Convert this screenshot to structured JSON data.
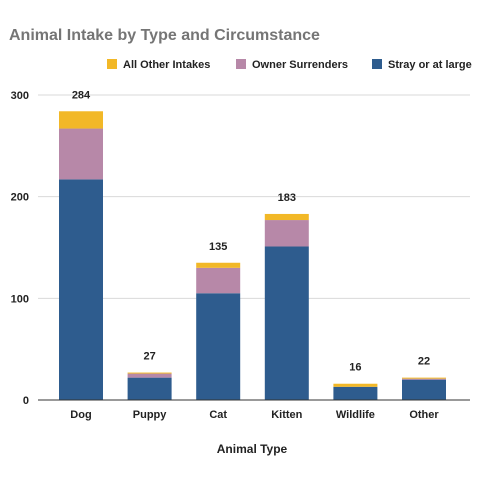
{
  "chart_data": {
    "type": "bar",
    "stacked": true,
    "title": "Animal Intake by Type and Circumstance",
    "xlabel": "Animal Type",
    "ylabel": "",
    "ylim": [
      0,
      300
    ],
    "yticks": [
      0,
      100,
      200,
      300
    ],
    "grid": true,
    "legend_position": "top",
    "categories": [
      "Dog",
      "Puppy",
      "Cat",
      "Kitten",
      "Wildlife",
      "Other"
    ],
    "series": [
      {
        "name": "Stray or at large",
        "color": "#2e5c8e",
        "values": [
          217,
          22,
          105,
          151,
          13,
          20
        ]
      },
      {
        "name": "Owner Surrenders",
        "color": "#b788a8",
        "values": [
          50,
          4,
          25,
          26,
          0,
          1
        ]
      },
      {
        "name": "All Other Intakes",
        "color": "#f2b827",
        "values": [
          17,
          1,
          5,
          6,
          3,
          1
        ]
      }
    ],
    "totals": [
      284,
      27,
      135,
      183,
      16,
      22
    ],
    "legend_order": [
      "All Other Intakes",
      "Owner Surrenders",
      "Stray or at large"
    ]
  }
}
